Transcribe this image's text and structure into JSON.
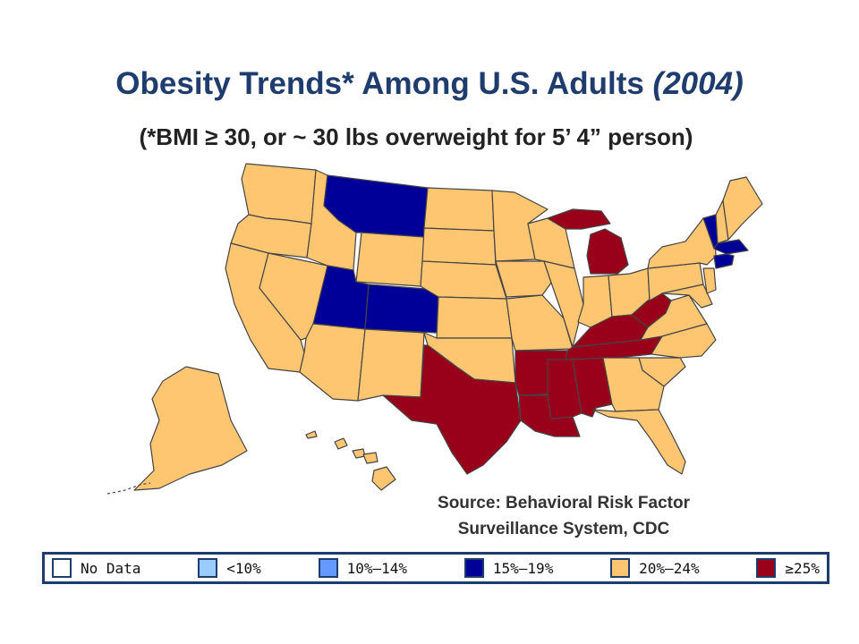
{
  "title": {
    "main": "Obesity Trends* Among U.S. Adults ",
    "year": "(2004)",
    "subtitle": "(*BMI ≥ 30, or ~ 30 lbs overweight for 5’ 4” person)"
  },
  "source": {
    "line1": "Source: Behavioral Risk Factor",
    "line2": "Surveillance System, CDC"
  },
  "legend": [
    {
      "label": "No Data",
      "color": "#ffffff"
    },
    {
      "label": "<10%",
      "color": "#99ccff"
    },
    {
      "label": "10%–14%",
      "color": "#6699ff"
    },
    {
      "label": "15%–19%",
      "color": "#000099"
    },
    {
      "label": "20%–24%",
      "color": "#ffc672"
    },
    {
      "label": "≥25%",
      "color": "#99001a"
    }
  ],
  "map_data": {
    "region": "United States",
    "year": 2004,
    "categories": {
      "15-19": [
        "MT",
        "UT",
        "CO",
        "VT",
        "MA",
        "CT",
        "RI"
      ],
      "25+": [
        "TX",
        "AR",
        "LA",
        "MS",
        "AL",
        "TN",
        "KY",
        "WV",
        "MI"
      ],
      "20-24": [
        "WA",
        "OR",
        "CA",
        "NV",
        "ID",
        "WY",
        "AZ",
        "NM",
        "ND",
        "SD",
        "NE",
        "KS",
        "OK",
        "MN",
        "IA",
        "MO",
        "WI",
        "IL",
        "IN",
        "OH",
        "PA",
        "NY",
        "NJ",
        "DE",
        "MD",
        "VA",
        "NC",
        "SC",
        "GA",
        "FL",
        "ME",
        "NH",
        "AK",
        "HI"
      ]
    }
  }
}
